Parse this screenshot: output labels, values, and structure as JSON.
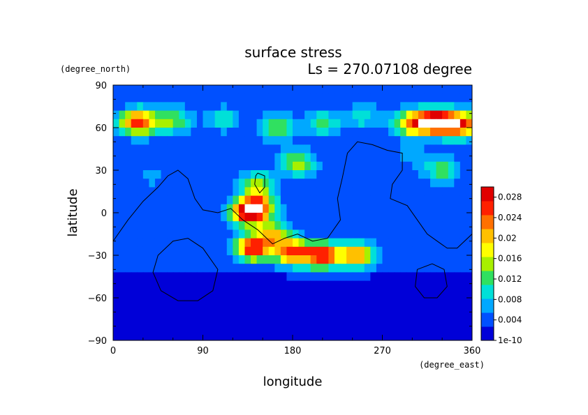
{
  "chart_data": {
    "type": "heatmap",
    "title": "surface stress",
    "subtitle": "Ls = 270.07108 degree",
    "xlabel": "longitude",
    "ylabel": "latitude",
    "x_units": "(degree_east)",
    "y_units": "(degree_north)",
    "xlim": [
      0,
      360
    ],
    "ylim": [
      -90,
      90
    ],
    "x_ticks": [
      "0",
      "90",
      "180",
      "270",
      "360"
    ],
    "y_ticks": [
      "90",
      "60",
      "30",
      "0",
      "−30",
      "−60",
      "−90"
    ],
    "colorbar_ticks": [
      "1e-10",
      "0.004",
      "0.008",
      "0.012",
      "0.016",
      "0.02",
      "0.024",
      "0.028"
    ],
    "colorbar_range": [
      0,
      0.03
    ],
    "colormap": [
      "#0000d8",
      "#0050ff",
      "#00a8ff",
      "#00e0d8",
      "#30e060",
      "#a8f000",
      "#ffff00",
      "#ffc000",
      "#ff7000",
      "#ff2000",
      "#e00000"
    ],
    "background_value": 0.003,
    "features": [
      {
        "lon": 25,
        "lat": 64,
        "value": 0.027
      },
      {
        "lon": 60,
        "lat": 65,
        "value": 0.014
      },
      {
        "lon": 110,
        "lat": 66,
        "value": 0.01
      },
      {
        "lon": 165,
        "lat": 60,
        "value": 0.014
      },
      {
        "lon": 210,
        "lat": 63,
        "value": 0.012
      },
      {
        "lon": 250,
        "lat": 68,
        "value": 0.01
      },
      {
        "lon": 300,
        "lat": 63,
        "value": 0.022
      },
      {
        "lon": 325,
        "lat": 64,
        "value": 0.032
      },
      {
        "lon": 350,
        "lat": 62,
        "value": 0.026
      },
      {
        "lon": 145,
        "lat": 20,
        "value": 0.014
      },
      {
        "lon": 185,
        "lat": 35,
        "value": 0.016
      },
      {
        "lon": 330,
        "lat": 30,
        "value": 0.013
      },
      {
        "lon": 135,
        "lat": 0,
        "value": 0.026
      },
      {
        "lon": 145,
        "lat": 5,
        "value": 0.02
      },
      {
        "lon": 160,
        "lat": -15,
        "value": 0.018
      },
      {
        "lon": 140,
        "lat": -25,
        "value": 0.027
      },
      {
        "lon": 180,
        "lat": -28,
        "value": 0.025
      },
      {
        "lon": 210,
        "lat": -30,
        "value": 0.027
      },
      {
        "lon": 245,
        "lat": -30,
        "value": 0.022
      },
      {
        "lon": 40,
        "lat": 25,
        "value": 0.006
      },
      {
        "lon": 300,
        "lat": 40,
        "value": 0.007
      }
    ],
    "contours": [
      [
        [
          0,
          -20
        ],
        [
          15,
          -5
        ],
        [
          30,
          8
        ],
        [
          45,
          18
        ],
        [
          55,
          26
        ],
        [
          65,
          30
        ],
        [
          75,
          24
        ],
        [
          82,
          10
        ],
        [
          90,
          2
        ],
        [
          105,
          0
        ],
        [
          118,
          3
        ],
        [
          130,
          -5
        ],
        [
          145,
          -12
        ],
        [
          160,
          -22
        ],
        [
          172,
          -18
        ],
        [
          185,
          -15
        ],
        [
          200,
          -20
        ],
        [
          215,
          -18
        ],
        [
          228,
          -5
        ],
        [
          225,
          10
        ],
        [
          230,
          25
        ],
        [
          235,
          42
        ],
        [
          245,
          50
        ],
        [
          260,
          48
        ],
        [
          275,
          44
        ],
        [
          290,
          42
        ],
        [
          290,
          30
        ],
        [
          280,
          20
        ],
        [
          278,
          10
        ],
        [
          295,
          5
        ],
        [
          305,
          -5
        ],
        [
          315,
          -15
        ],
        [
          325,
          -20
        ],
        [
          335,
          -25
        ],
        [
          345,
          -25
        ],
        [
          360,
          -15
        ]
      ],
      [
        [
          145,
          28
        ],
        [
          152,
          26
        ],
        [
          152,
          18
        ],
        [
          147,
          14
        ],
        [
          142,
          20
        ],
        [
          143,
          26
        ],
        [
          145,
          28
        ]
      ],
      [
        [
          75,
          -18
        ],
        [
          90,
          -25
        ],
        [
          105,
          -40
        ],
        [
          100,
          -55
        ],
        [
          85,
          -62
        ],
        [
          65,
          -62
        ],
        [
          48,
          -55
        ],
        [
          40,
          -42
        ],
        [
          45,
          -30
        ],
        [
          60,
          -20
        ],
        [
          75,
          -18
        ]
      ],
      [
        [
          320,
          -36
        ],
        [
          332,
          -40
        ],
        [
          335,
          -52
        ],
        [
          325,
          -60
        ],
        [
          312,
          -60
        ],
        [
          303,
          -52
        ],
        [
          305,
          -40
        ],
        [
          320,
          -36
        ]
      ]
    ]
  }
}
